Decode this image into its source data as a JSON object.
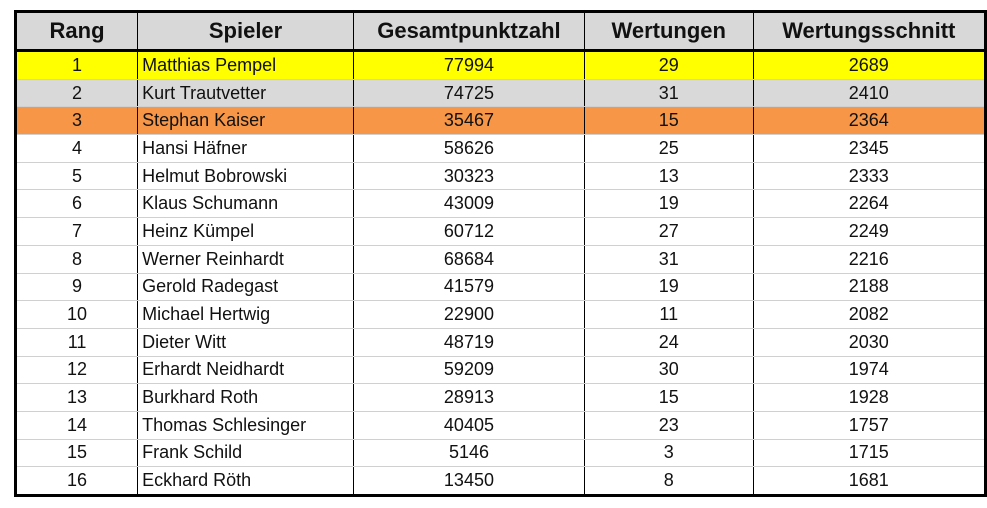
{
  "table": {
    "headers": [
      "Rang",
      "Spieler",
      "Gesamtpunktzahl",
      "Wertungen",
      "Wertungsschnitt"
    ],
    "rows": [
      [
        "1",
        "Matthias Pempel",
        "77994",
        "29",
        "2689"
      ],
      [
        "2",
        "Kurt Trautvetter",
        "74725",
        "31",
        "2410"
      ],
      [
        "3",
        "Stephan Kaiser",
        "35467",
        "15",
        "2364"
      ],
      [
        "4",
        "Hansi Häfner",
        "58626",
        "25",
        "2345"
      ],
      [
        "5",
        "Helmut Bobrowski",
        "30323",
        "13",
        "2333"
      ],
      [
        "6",
        "Klaus Schumann",
        "43009",
        "19",
        "2264"
      ],
      [
        "7",
        "Heinz Kümpel",
        "60712",
        "27",
        "2249"
      ],
      [
        "8",
        "Werner Reinhardt",
        "68684",
        "31",
        "2216"
      ],
      [
        "9",
        "Gerold Radegast",
        "41579",
        "19",
        "2188"
      ],
      [
        "10",
        "Michael Hertwig",
        "22900",
        "11",
        "2082"
      ],
      [
        "11",
        "Dieter Witt",
        "48719",
        "24",
        "2030"
      ],
      [
        "12",
        "Erhardt Neidhardt",
        "59209",
        "30",
        "1974"
      ],
      [
        "13",
        "Burkhard Roth",
        "28913",
        "15",
        "1928"
      ],
      [
        "14",
        "Thomas Schlesinger",
        "40405",
        "23",
        "1757"
      ],
      [
        "15",
        "Frank Schild",
        "5146",
        "3",
        "1715"
      ],
      [
        "16",
        "Eckhard Röth",
        "13450",
        "8",
        "1681"
      ]
    ]
  },
  "colors": {
    "header_bg": "#d8d8d8",
    "rank1_bg": "#ffff00",
    "rank2_bg": "#d9d9d9",
    "rank3_bg": "#f79646"
  }
}
